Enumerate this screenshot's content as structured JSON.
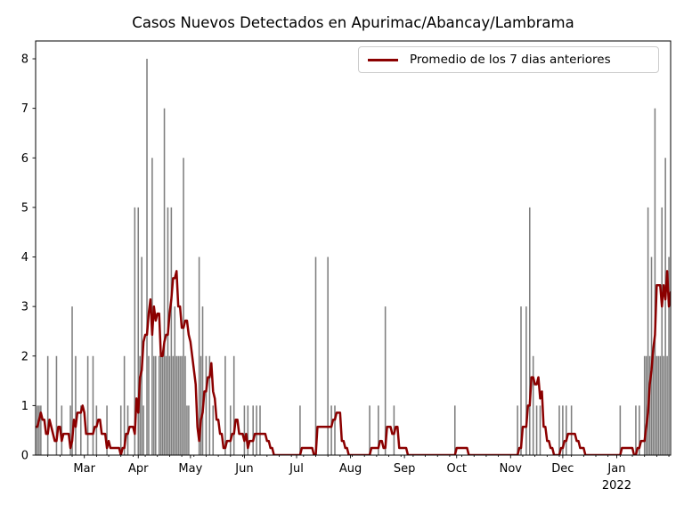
{
  "title": "Casos Nuevos Detectados en Apurimac/Abancay/Lambrama",
  "legend": {
    "items": [
      {
        "label": "Promedio de los 7 dias anteriores",
        "color": "#8b0000"
      }
    ]
  },
  "chart_data": {
    "type": "bar",
    "title": "Casos Nuevos Detectados en Apurimac/Abancay/Lambrama",
    "x_range": [
      "2021-02-01",
      "2022-02-01"
    ],
    "ylim": [
      0,
      8.36
    ],
    "y_ticks": [
      0,
      1,
      2,
      3,
      4,
      5,
      6,
      7,
      8
    ],
    "grid": false,
    "legend_position": "upper right",
    "bar_color": "#7f7f7f",
    "x_ticks": [
      {
        "date": "2021-03-01",
        "label": "Mar"
      },
      {
        "date": "2021-04-01",
        "label": "Apr"
      },
      {
        "date": "2021-05-01",
        "label": "May"
      },
      {
        "date": "2021-06-01",
        "label": "Jun"
      },
      {
        "date": "2021-07-01",
        "label": "Jul"
      },
      {
        "date": "2021-08-01",
        "label": "Aug"
      },
      {
        "date": "2021-09-01",
        "label": "Sep"
      },
      {
        "date": "2021-10-01",
        "label": "Oct"
      },
      {
        "date": "2021-11-01",
        "label": "Nov"
      },
      {
        "date": "2021-12-01",
        "label": "Dec"
      },
      {
        "date": "2022-01-01",
        "label": "Jan",
        "year_label": "2022"
      }
    ],
    "daily_cases": [
      [
        "2021-02-02",
        1
      ],
      [
        "2021-02-03",
        1
      ],
      [
        "2021-02-04",
        1
      ],
      [
        "2021-02-08",
        2
      ],
      [
        "2021-02-13",
        2
      ],
      [
        "2021-02-16",
        1
      ],
      [
        "2021-02-21",
        1
      ],
      [
        "2021-02-22",
        3
      ],
      [
        "2021-02-24",
        2
      ],
      [
        "2021-02-27",
        1
      ],
      [
        "2021-03-03",
        2
      ],
      [
        "2021-03-06",
        2
      ],
      [
        "2021-03-08",
        1
      ],
      [
        "2021-03-14",
        1
      ],
      [
        "2021-03-22",
        1
      ],
      [
        "2021-03-24",
        2
      ],
      [
        "2021-03-26",
        1
      ],
      [
        "2021-03-30",
        5
      ],
      [
        "2021-04-01",
        5
      ],
      [
        "2021-04-02",
        2
      ],
      [
        "2021-04-03",
        4
      ],
      [
        "2021-04-04",
        1
      ],
      [
        "2021-04-06",
        8
      ],
      [
        "2021-04-07",
        2
      ],
      [
        "2021-04-09",
        6
      ],
      [
        "2021-04-10",
        2
      ],
      [
        "2021-04-11",
        2
      ],
      [
        "2021-04-13",
        2
      ],
      [
        "2021-04-14",
        2
      ],
      [
        "2021-04-15",
        2
      ],
      [
        "2021-04-16",
        7
      ],
      [
        "2021-04-17",
        2
      ],
      [
        "2021-04-18",
        5
      ],
      [
        "2021-04-19",
        2
      ],
      [
        "2021-04-20",
        5
      ],
      [
        "2021-04-21",
        2
      ],
      [
        "2021-04-22",
        3
      ],
      [
        "2021-04-23",
        2
      ],
      [
        "2021-04-24",
        2
      ],
      [
        "2021-04-25",
        2
      ],
      [
        "2021-04-26",
        2
      ],
      [
        "2021-04-27",
        6
      ],
      [
        "2021-04-28",
        2
      ],
      [
        "2021-04-29",
        1
      ],
      [
        "2021-04-30",
        1
      ],
      [
        "2021-05-06",
        4
      ],
      [
        "2021-05-07",
        2
      ],
      [
        "2021-05-08",
        3
      ],
      [
        "2021-05-10",
        2
      ],
      [
        "2021-05-12",
        2
      ],
      [
        "2021-05-14",
        1
      ],
      [
        "2021-05-21",
        2
      ],
      [
        "2021-05-24",
        1
      ],
      [
        "2021-05-26",
        2
      ],
      [
        "2021-06-01",
        1
      ],
      [
        "2021-06-03",
        1
      ],
      [
        "2021-06-06",
        1
      ],
      [
        "2021-06-08",
        1
      ],
      [
        "2021-06-10",
        1
      ],
      [
        "2021-07-03",
        1
      ],
      [
        "2021-07-12",
        4
      ],
      [
        "2021-07-19",
        4
      ],
      [
        "2021-07-21",
        1
      ],
      [
        "2021-07-23",
        1
      ],
      [
        "2021-08-12",
        1
      ],
      [
        "2021-08-17",
        1
      ],
      [
        "2021-08-21",
        3
      ],
      [
        "2021-08-26",
        1
      ],
      [
        "2021-09-30",
        1
      ],
      [
        "2021-11-05",
        1
      ],
      [
        "2021-11-07",
        3
      ],
      [
        "2021-11-10",
        3
      ],
      [
        "2021-11-12",
        5
      ],
      [
        "2021-11-14",
        2
      ],
      [
        "2021-11-16",
        1
      ],
      [
        "2021-11-18",
        1
      ],
      [
        "2021-11-29",
        1
      ],
      [
        "2021-12-01",
        1
      ],
      [
        "2021-12-03",
        1
      ],
      [
        "2021-12-06",
        1
      ],
      [
        "2022-01-03",
        1
      ],
      [
        "2022-01-12",
        1
      ],
      [
        "2022-01-14",
        1
      ],
      [
        "2022-01-17",
        2
      ],
      [
        "2022-01-18",
        2
      ],
      [
        "2022-01-19",
        5
      ],
      [
        "2022-01-20",
        2
      ],
      [
        "2022-01-21",
        4
      ],
      [
        "2022-01-22",
        2
      ],
      [
        "2022-01-23",
        7
      ],
      [
        "2022-01-24",
        2
      ],
      [
        "2022-01-25",
        2
      ],
      [
        "2022-01-26",
        2
      ],
      [
        "2022-01-27",
        5
      ],
      [
        "2022-01-28",
        2
      ],
      [
        "2022-01-29",
        6
      ],
      [
        "2022-01-30",
        2
      ],
      [
        "2022-01-31",
        4
      ]
    ],
    "line_series": {
      "name": "Promedio de los 7 dias anteriores",
      "color": "#8b0000",
      "derivation": "mean of the previous 7 days of daily_cases",
      "window_days": 7,
      "pre_range_daily_cases": [
        [
          "2021-01-28",
          2
        ],
        [
          "2021-01-30",
          2
        ]
      ]
    }
  }
}
